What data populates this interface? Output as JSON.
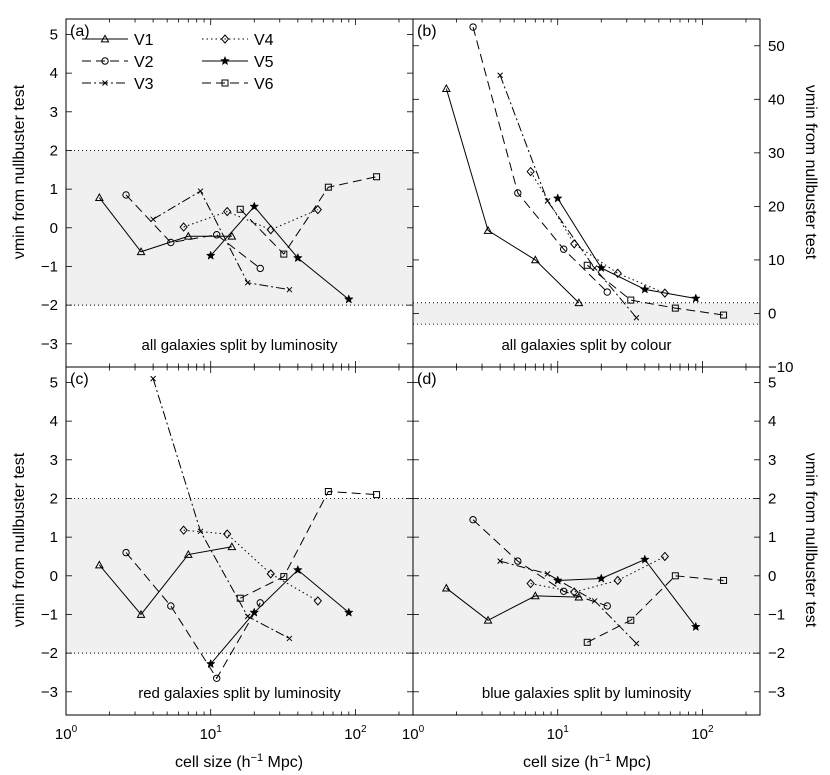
{
  "figure": {
    "xlabel": "cell size (h⁻¹ Mpc)",
    "ylabel": "νmin from nullbuster test"
  },
  "chart_data": [
    {
      "type": "line",
      "panel_label": "(a)",
      "caption": "all galaxies split by luminosity",
      "xscale": "log",
      "xlim": [
        1,
        250
      ],
      "ylim": [
        -3.6,
        5.4
      ],
      "yticks": [
        -3,
        -2,
        -1,
        0,
        1,
        2,
        3,
        4,
        5
      ],
      "band": [
        -2,
        2
      ],
      "legend": [
        "V1",
        "V2",
        "V3",
        "V4",
        "V5",
        "V6"
      ],
      "series": [
        {
          "name": "V1",
          "x": [
            1.7,
            3.3,
            7,
            14
          ],
          "y": [
            0.78,
            -0.62,
            -0.22,
            -0.22
          ]
        },
        {
          "name": "V2",
          "x": [
            2.6,
            5.3,
            11,
            22
          ],
          "y": [
            0.85,
            -0.38,
            -0.18,
            -1.05
          ]
        },
        {
          "name": "V3",
          "x": [
            4,
            8.5,
            18,
            35
          ],
          "y": [
            0.22,
            0.95,
            -1.42,
            -1.6
          ]
        },
        {
          "name": "V4",
          "x": [
            6.5,
            13,
            26,
            55
          ],
          "y": [
            0.02,
            0.42,
            -0.05,
            0.47
          ]
        },
        {
          "name": "V5",
          "x": [
            10,
            20,
            40,
            90
          ],
          "y": [
            -0.72,
            0.55,
            -0.78,
            -1.85
          ]
        },
        {
          "name": "V6",
          "x": [
            16,
            32,
            65,
            140
          ],
          "y": [
            0.48,
            -0.68,
            1.05,
            1.32
          ]
        }
      ]
    },
    {
      "type": "line",
      "panel_label": "(b)",
      "caption": "all galaxies split by colour",
      "xscale": "log",
      "xlim": [
        1,
        250
      ],
      "ylim": [
        -10,
        55
      ],
      "yticks": [
        -10,
        0,
        10,
        20,
        30,
        40,
        50
      ],
      "band": [
        -2,
        2
      ],
      "legend": [],
      "series": [
        {
          "name": "V1",
          "x": [
            1.7,
            3.3,
            7,
            14
          ],
          "y": [
            42,
            15.5,
            10,
            2
          ]
        },
        {
          "name": "V2",
          "x": [
            2.6,
            5.3,
            11,
            22
          ],
          "y": [
            53.5,
            22.5,
            12,
            4
          ]
        },
        {
          "name": "V3",
          "x": [
            4,
            8.5,
            18,
            35
          ],
          "y": [
            44.5,
            21,
            8.5,
            -0.8
          ]
        },
        {
          "name": "V4",
          "x": [
            6.5,
            13,
            26,
            55
          ],
          "y": [
            26.5,
            13,
            7.5,
            3.8
          ]
        },
        {
          "name": "V5",
          "x": [
            10,
            20,
            40,
            90
          ],
          "y": [
            21.5,
            8.5,
            4.5,
            2.8
          ]
        },
        {
          "name": "V6",
          "x": [
            16,
            32,
            65,
            140
          ],
          "y": [
            9,
            2.5,
            1,
            -0.3
          ]
        }
      ]
    },
    {
      "type": "line",
      "panel_label": "(c)",
      "caption": "red galaxies split by luminosity",
      "xscale": "log",
      "xlim": [
        1,
        250
      ],
      "ylim": [
        -3.6,
        5.4
      ],
      "yticks": [
        -3,
        -2,
        -1,
        0,
        1,
        2,
        3,
        4,
        5
      ],
      "band": [
        -2,
        2
      ],
      "legend": [],
      "series": [
        {
          "name": "V1",
          "x": [
            1.7,
            3.3,
            7,
            14
          ],
          "y": [
            0.28,
            -1,
            0.55,
            0.75
          ]
        },
        {
          "name": "V2",
          "x": [
            2.6,
            5.3,
            11,
            22
          ],
          "y": [
            0.6,
            -0.78,
            -2.65,
            -0.7
          ]
        },
        {
          "name": "V3",
          "x": [
            4,
            8.5,
            18,
            35
          ],
          "y": [
            5.1,
            1.15,
            -1.05,
            -1.62
          ]
        },
        {
          "name": "V4",
          "x": [
            6.5,
            13,
            26,
            55
          ],
          "y": [
            1.18,
            1.08,
            0.05,
            -0.65
          ]
        },
        {
          "name": "V5",
          "x": [
            10,
            20,
            40,
            90
          ],
          "y": [
            -2.28,
            -0.95,
            0.15,
            -0.95
          ]
        },
        {
          "name": "V6",
          "x": [
            16,
            32,
            65,
            140
          ],
          "y": [
            -0.58,
            -0.02,
            2.18,
            2.1
          ]
        }
      ]
    },
    {
      "type": "line",
      "panel_label": "(d)",
      "caption": "blue galaxies split by luminosity",
      "xscale": "log",
      "xlim": [
        1,
        250
      ],
      "ylim": [
        -3.6,
        5.4
      ],
      "yticks": [
        -3,
        -2,
        -1,
        0,
        1,
        2,
        3,
        4,
        5
      ],
      "band": [
        -2,
        2
      ],
      "legend": [],
      "series": [
        {
          "name": "V1",
          "x": [
            1.7,
            3.3,
            7,
            14
          ],
          "y": [
            -0.32,
            -1.15,
            -0.52,
            -0.55
          ]
        },
        {
          "name": "V2",
          "x": [
            2.6,
            5.3,
            11,
            22
          ],
          "y": [
            1.45,
            0.38,
            -0.4,
            -0.78
          ]
        },
        {
          "name": "V3",
          "x": [
            4,
            8.5,
            18,
            35
          ],
          "y": [
            0.38,
            0.05,
            -0.65,
            -1.75
          ]
        },
        {
          "name": "V4",
          "x": [
            6.5,
            13,
            26,
            55
          ],
          "y": [
            -0.2,
            -0.42,
            -0.12,
            0.5
          ]
        },
        {
          "name": "V5",
          "x": [
            10,
            20,
            40,
            90
          ],
          "y": [
            -0.12,
            -0.07,
            0.42,
            -1.32
          ]
        },
        {
          "name": "V6",
          "x": [
            16,
            32,
            65,
            140
          ],
          "y": [
            -1.72,
            -1.15,
            0,
            -0.12
          ]
        }
      ]
    }
  ],
  "styles": {
    "V1": {
      "dash": "",
      "marker": "triangle"
    },
    "V2": {
      "dash": "9,5",
      "marker": "circle"
    },
    "V3": {
      "dash": "9,3,2,3",
      "marker": "x"
    },
    "V4": {
      "dash": "1.5,3",
      "marker": "diamond"
    },
    "V5": {
      "dash": "",
      "marker": "star"
    },
    "V6": {
      "dash": "9,5",
      "marker": "square"
    }
  },
  "colors": {
    "band": "#f0f0f0",
    "line": "#000000"
  }
}
